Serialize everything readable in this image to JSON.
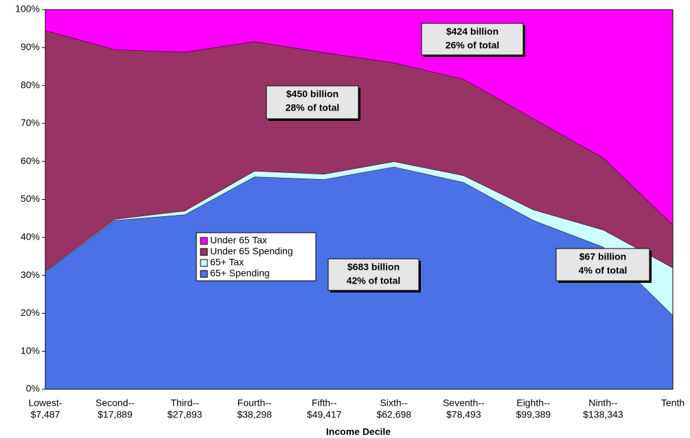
{
  "chart_data": {
    "type": "stacked-area",
    "stacked_percent": true,
    "xlabel": "Income Decile",
    "categories": [
      [
        "Lowest-",
        "$7,487"
      ],
      [
        "Second--",
        "$17,889"
      ],
      [
        "Third--",
        "$27,893"
      ],
      [
        "Fourth--",
        "$38,298"
      ],
      [
        "Fifth--",
        "$49,417"
      ],
      [
        "Sixth--",
        "$62,698"
      ],
      [
        "Seventh--",
        "$78,493"
      ],
      [
        "Eighth--",
        "$99,389"
      ],
      [
        "Ninth--",
        "$138,343"
      ],
      [
        "Tenth"
      ]
    ],
    "series": [
      {
        "name": "65+ Spending",
        "color": "#4a72e6",
        "values": [
          31,
          44.5,
          46,
          56,
          55.3,
          58.6,
          54.5,
          44.5,
          37.5,
          19.5
        ]
      },
      {
        "name": "65+ Tax",
        "color": "#ccffff",
        "values": [
          0.2,
          0.3,
          1,
          1.5,
          1.4,
          1.4,
          1.8,
          2.8,
          4.5,
          12.5
        ]
      },
      {
        "name": "Under 65 Spending",
        "color": "#993366",
        "values": [
          63.3,
          44.7,
          41.8,
          34.1,
          32,
          26,
          25.4,
          24,
          19,
          11.3
        ]
      },
      {
        "name": "Under 65 Tax",
        "color": "#ff00ff",
        "values": [
          5.5,
          10.5,
          11.2,
          8.4,
          11.3,
          14,
          18.3,
          28.7,
          39,
          56.7
        ]
      }
    ],
    "ylim": [
      0,
      100
    ],
    "yticks": [
      {
        "value": 0,
        "label": "0%"
      },
      {
        "value": 10,
        "label": "10%"
      },
      {
        "value": 20,
        "label": "20%"
      },
      {
        "value": 30,
        "label": "30%"
      },
      {
        "value": 40,
        "label": "40%"
      },
      {
        "value": 50,
        "label": "50%"
      },
      {
        "value": 60,
        "label": "60%"
      },
      {
        "value": 70,
        "label": "70%"
      },
      {
        "value": 80,
        "label": "80%"
      },
      {
        "value": 90,
        "label": "90%"
      },
      {
        "value": 100,
        "label": "100%"
      }
    ],
    "annotations": [
      {
        "lines": [
          "$424 billion",
          "26% of total"
        ]
      },
      {
        "lines": [
          "$450 billion",
          "28% of total"
        ]
      },
      {
        "lines": [
          "$683 billion",
          "42% of total"
        ]
      },
      {
        "lines": [
          "$67 billion",
          "4% of total"
        ]
      }
    ],
    "legend": "inside-left"
  }
}
